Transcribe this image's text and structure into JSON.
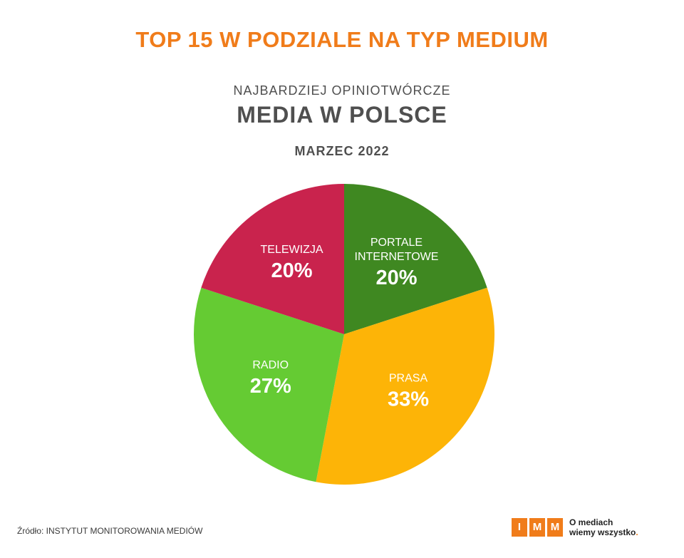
{
  "header": {
    "title": "TOP 15 W PODZIALE NA TYP MEDIUM",
    "subtitle": "NAJBARDZIEJ OPINIOTWÓRCZE",
    "heading": "MEDIA W POLSCE",
    "date": "MARZEC 2022"
  },
  "chart_data": {
    "type": "pie",
    "title": "TOP 15 W PODZIALE NA TYP MEDIUM",
    "start_angle_deg": 0,
    "direction": "clockwise",
    "slices": [
      {
        "label_lines": [
          "PORTALE",
          "INTERNETOWE"
        ],
        "value": 20,
        "value_label": "20%",
        "color": "#3f8821"
      },
      {
        "label_lines": [
          "PRASA"
        ],
        "value": 33,
        "value_label": "33%",
        "color": "#fdb407"
      },
      {
        "label_lines": [
          "RADIO"
        ],
        "value": 27,
        "value_label": "27%",
        "color": "#65cb33"
      },
      {
        "label_lines": [
          "TELEWIZJA"
        ],
        "value": 20,
        "value_label": "20%",
        "color": "#c9234d"
      }
    ]
  },
  "footer": {
    "source": "Źródło: INSTYTUT MONITOROWANIA MEDIÓW",
    "logo_letters": [
      "I",
      "M",
      "M"
    ],
    "tagline_line1": "O mediach",
    "tagline_line2": "wiemy wszystko",
    "tagline_dot": "."
  }
}
